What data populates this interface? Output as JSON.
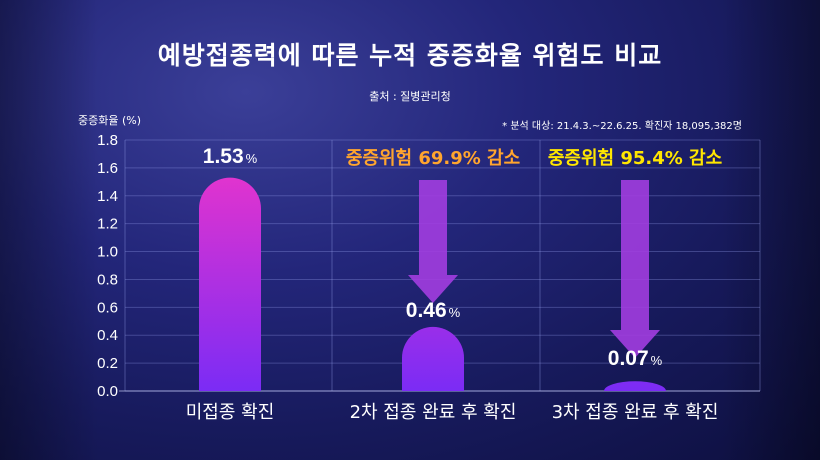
{
  "title": "예방접종력에 따른 누적 중증화율 위험도 비교",
  "source": "출처 : 질병관리청",
  "note": "* 분석 대상: 21.4.3.~22.6.25. 확진자 18,095,382명",
  "chart_data": {
    "type": "bar",
    "ylabel": "중증화율 (%)",
    "ylim": [
      0,
      1.8
    ],
    "yticks": [
      "1.8",
      "1.6",
      "1.4",
      "1.2",
      "1.0",
      "0.8",
      "0.6",
      "0.4",
      "0.2",
      "0.0"
    ],
    "categories": [
      "미접종 확진",
      "2차 접종 완료 후 확진",
      "3차 접종 완료 후 확진"
    ],
    "values": [
      1.53,
      0.46,
      0.07
    ],
    "value_labels": [
      "1.53",
      "0.46",
      "0.07"
    ],
    "value_unit": "%",
    "reduction_labels": [
      "",
      "중증위험 69.9% 감소",
      "중증위험 95.4% 감소"
    ],
    "grid": true,
    "colors": {
      "bar_top": "#f235c8",
      "bar_bottom": "#7b2cf5",
      "arrow": "#a23de0",
      "reduction_2": "#ffa52e",
      "reduction_3": "#ffe600"
    }
  }
}
